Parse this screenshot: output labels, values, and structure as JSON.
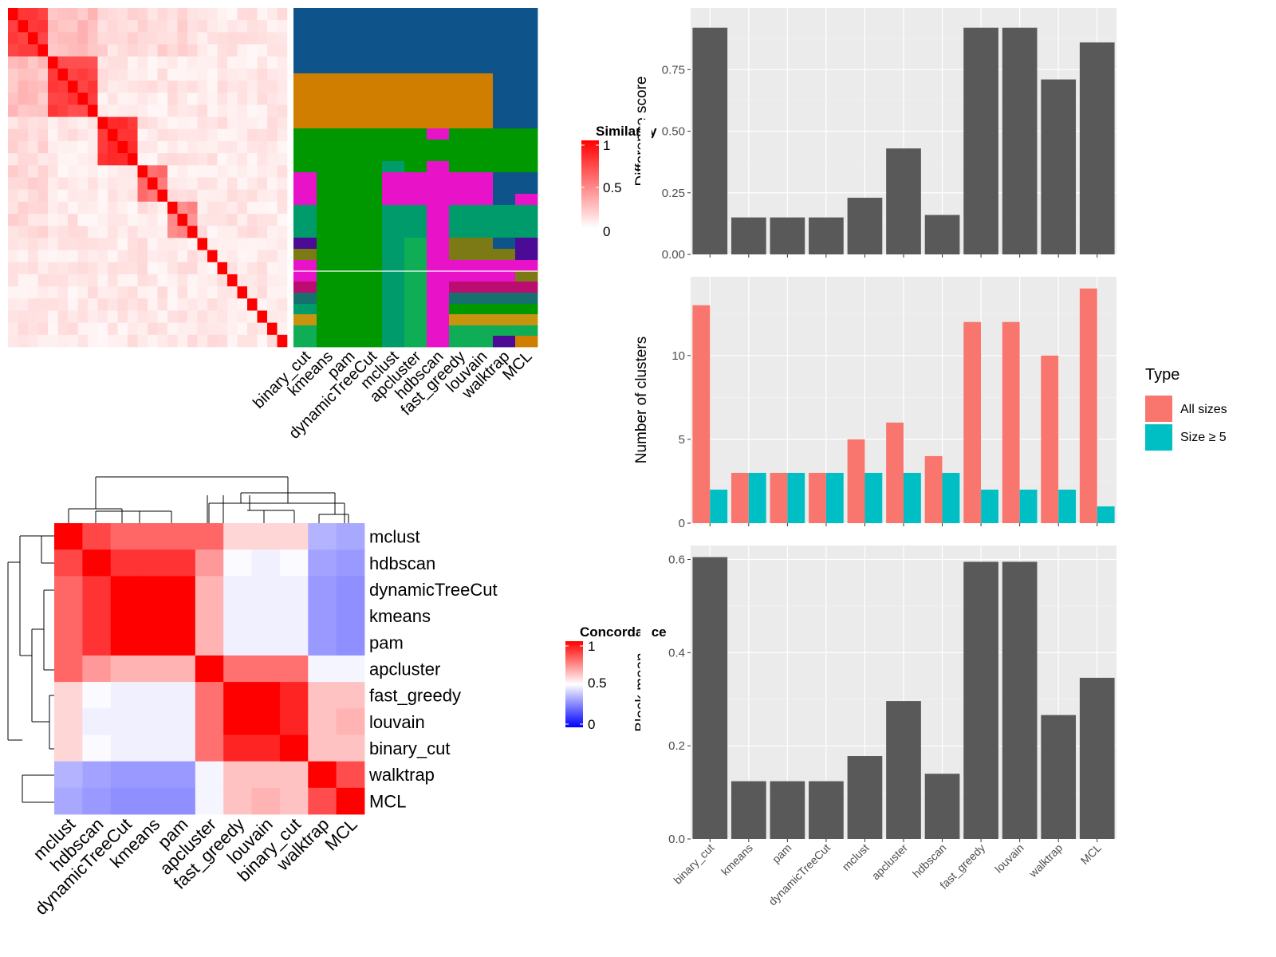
{
  "colors": {
    "panel_bg": "#EBEBEB",
    "bar_gray": "#595959",
    "all_sizes": "#F8766D",
    "size5": "#00BFC4",
    "sim_high": "#FF0000",
    "sim_low": "#FFFFFF",
    "conc_low": "#0000FF",
    "conc_mid": "#FFFFFF",
    "conc_high": "#FF0000",
    "cluster_palette": [
      "#0E538A",
      "#CF7E00",
      "#009800",
      "#E813C8",
      "#009B6A",
      "#0EAD56",
      "#4B0B94",
      "#7B7A14",
      "#BB0C6F",
      "#18706E",
      "#C8930E"
    ]
  },
  "chart_data": [
    {
      "id": "similarity_heatmap",
      "type": "heatmap",
      "legend": {
        "title": "Similarity",
        "ticks": [
          "1",
          "0.5",
          "0"
        ]
      },
      "n_cells": 28,
      "diagonal_value": 1,
      "blocks": [
        {
          "rows": [
            0,
            1,
            2,
            3
          ],
          "value": 0.85
        },
        {
          "rows": [
            4,
            5,
            6,
            7,
            8
          ],
          "value": 0.8
        },
        {
          "rows": [
            9,
            10,
            11,
            12
          ],
          "value": 0.85
        },
        {
          "rows": [
            13,
            14,
            15
          ],
          "value": 0.6
        },
        {
          "rows": [
            16,
            17,
            18
          ],
          "value": 0.5
        }
      ]
    },
    {
      "id": "cluster_assignments",
      "type": "heatmap",
      "columns": [
        "binary_cut",
        "kmeans",
        "pam",
        "dynamicTreeCut",
        "mclust",
        "apcluster",
        "hdbscan",
        "fast_greedy",
        "louvain",
        "walktrap",
        "MCL"
      ]
    },
    {
      "id": "difference_score",
      "type": "bar",
      "categories": [
        "binary_cut",
        "kmeans",
        "pam",
        "dynamicTreeCut",
        "mclust",
        "apcluster",
        "hdbscan",
        "fast_greedy",
        "louvain",
        "walktrap",
        "MCL"
      ],
      "values": [
        0.92,
        0.15,
        0.15,
        0.15,
        0.23,
        0.43,
        0.16,
        0.92,
        0.92,
        0.71,
        0.86
      ],
      "ylabel": "Difference score",
      "ylim": [
        0,
        1
      ],
      "yticks": [
        0,
        0.25,
        0.5,
        0.75
      ],
      "ytick_labels": [
        "0.00",
        "0.25",
        "0.50",
        "0.75"
      ]
    },
    {
      "id": "number_of_clusters",
      "type": "bar",
      "categories": [
        "binary_cut",
        "kmeans",
        "pam",
        "dynamicTreeCut",
        "mclust",
        "apcluster",
        "hdbscan",
        "fast_greedy",
        "louvain",
        "walktrap",
        "MCL"
      ],
      "series": [
        {
          "name": "All sizes",
          "values": [
            13,
            3,
            3,
            3,
            5,
            6,
            4,
            12,
            12,
            10,
            14
          ]
        },
        {
          "name": "Size ≥ 5",
          "values": [
            2,
            3,
            3,
            3,
            3,
            3,
            3,
            2,
            2,
            2,
            1
          ]
        }
      ],
      "ylabel": "Number of clusters",
      "ylim": [
        0,
        14.7
      ],
      "yticks": [
        0,
        5,
        10
      ],
      "ytick_labels": [
        "0",
        "5",
        "10"
      ],
      "legend": {
        "title": "Type",
        "position": "right"
      }
    },
    {
      "id": "block_mean",
      "type": "bar",
      "categories": [
        "binary_cut",
        "kmeans",
        "pam",
        "dynamicTreeCut",
        "mclust",
        "apcluster",
        "hdbscan",
        "fast_greedy",
        "louvain",
        "walktrap",
        "MCL"
      ],
      "values": [
        0.605,
        0.124,
        0.124,
        0.124,
        0.178,
        0.296,
        0.14,
        0.595,
        0.595,
        0.266,
        0.346
      ],
      "ylabel": "Block mean",
      "ylim": [
        0,
        0.63
      ],
      "yticks": [
        0,
        0.2,
        0.4,
        0.6
      ],
      "ytick_labels": [
        "0.0",
        "0.2",
        "0.4",
        "0.6"
      ]
    },
    {
      "id": "concordance_heatmap",
      "type": "heatmap",
      "legend": {
        "title": "Concordance",
        "ticks": [
          "1",
          "0.5",
          "0"
        ]
      },
      "labels": [
        "mclust",
        "hdbscan",
        "dynamicTreeCut",
        "kmeans",
        "pam",
        "apcluster",
        "fast_greedy",
        "louvain",
        "binary_cut",
        "walktrap",
        "MCL"
      ],
      "matrix": [
        [
          1.0,
          0.86,
          0.8,
          0.8,
          0.8,
          0.8,
          0.58,
          0.58,
          0.58,
          0.35,
          0.33
        ],
        [
          0.86,
          1.0,
          0.9,
          0.9,
          0.9,
          0.7,
          0.49,
          0.47,
          0.49,
          0.32,
          0.3
        ],
        [
          0.8,
          0.9,
          1.0,
          1.0,
          1.0,
          0.65,
          0.47,
          0.47,
          0.47,
          0.3,
          0.28
        ],
        [
          0.8,
          0.9,
          1.0,
          1.0,
          1.0,
          0.65,
          0.47,
          0.47,
          0.47,
          0.3,
          0.28
        ],
        [
          0.8,
          0.9,
          1.0,
          1.0,
          1.0,
          0.65,
          0.47,
          0.47,
          0.47,
          0.3,
          0.28
        ],
        [
          0.8,
          0.7,
          0.65,
          0.65,
          0.65,
          1.0,
          0.78,
          0.78,
          0.78,
          0.48,
          0.48
        ],
        [
          0.58,
          0.49,
          0.47,
          0.47,
          0.47,
          0.78,
          1.0,
          1.0,
          0.93,
          0.62,
          0.62
        ],
        [
          0.58,
          0.47,
          0.47,
          0.47,
          0.47,
          0.78,
          1.0,
          1.0,
          0.93,
          0.62,
          0.65
        ],
        [
          0.58,
          0.49,
          0.47,
          0.47,
          0.47,
          0.78,
          0.93,
          0.93,
          1.0,
          0.62,
          0.62
        ],
        [
          0.35,
          0.32,
          0.3,
          0.3,
          0.3,
          0.48,
          0.62,
          0.62,
          0.62,
          1.0,
          0.85
        ],
        [
          0.33,
          0.3,
          0.28,
          0.28,
          0.28,
          0.48,
          0.62,
          0.65,
          0.62,
          0.85,
          1.0
        ]
      ]
    }
  ]
}
